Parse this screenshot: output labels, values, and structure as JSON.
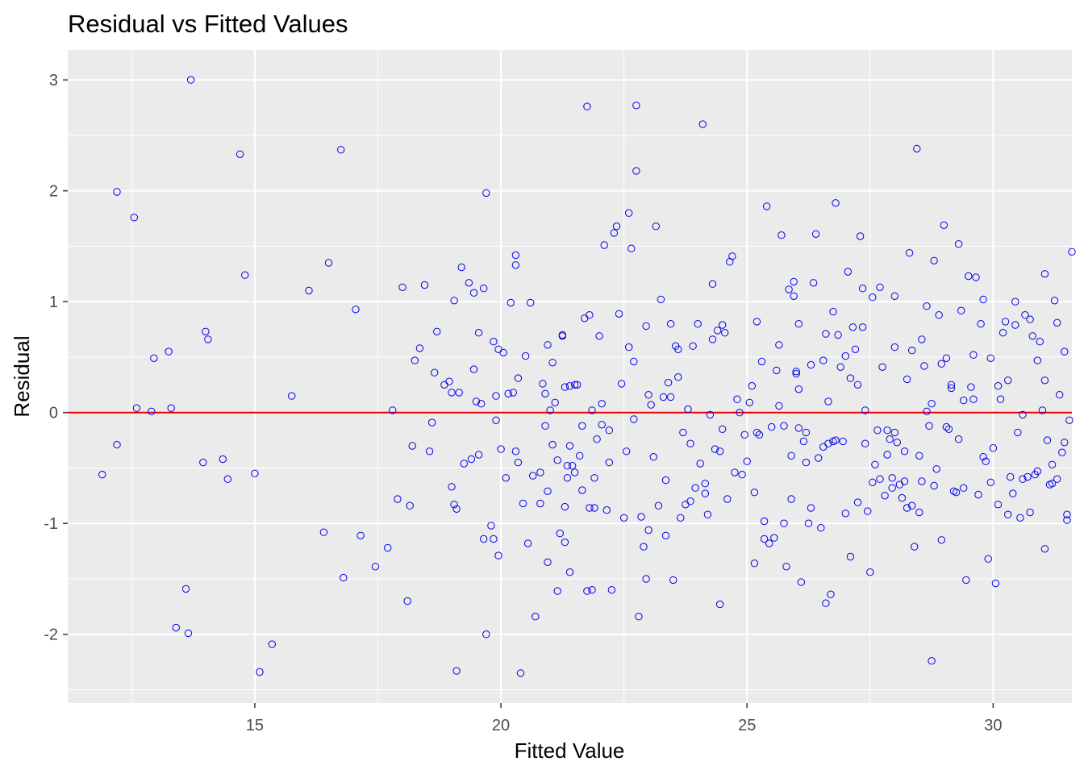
{
  "chart_data": {
    "type": "scatter",
    "title": "Residual vs Fitted Values",
    "xlabel": "Fitted Value",
    "ylabel": "Residual",
    "xlim": [
      11.2,
      31.6
    ],
    "ylim": [
      -2.62,
      3.27
    ],
    "xticks": [
      15,
      20,
      25,
      30
    ],
    "yticks": [
      -2,
      -1,
      0,
      1,
      2,
      3
    ],
    "grid": true,
    "reference_line": {
      "y": 0,
      "color": "#ee0000"
    },
    "panel_background": "#ebebeb",
    "point_color": "#0000ee",
    "points": [
      [
        11.9,
        -0.56
      ],
      [
        12.2,
        -0.29
      ],
      [
        12.2,
        1.99
      ],
      [
        12.55,
        1.76
      ],
      [
        12.6,
        0.04
      ],
      [
        12.9,
        0.01
      ],
      [
        12.95,
        0.49
      ],
      [
        13.25,
        0.55
      ],
      [
        13.3,
        0.04
      ],
      [
        13.4,
        -1.94
      ],
      [
        13.6,
        -1.59
      ],
      [
        13.65,
        -1.99
      ],
      [
        13.7,
        3.0
      ],
      [
        13.95,
        -0.45
      ],
      [
        14.0,
        0.73
      ],
      [
        14.05,
        0.66
      ],
      [
        14.35,
        -0.42
      ],
      [
        14.45,
        -0.6
      ],
      [
        14.7,
        2.33
      ],
      [
        14.8,
        1.24
      ],
      [
        15.0,
        -0.55
      ],
      [
        15.1,
        -2.34
      ],
      [
        15.35,
        -2.09
      ],
      [
        15.75,
        0.15
      ],
      [
        16.1,
        1.1
      ],
      [
        16.4,
        -1.08
      ],
      [
        16.5,
        1.35
      ],
      [
        16.75,
        2.37
      ],
      [
        16.8,
        -1.49
      ],
      [
        17.05,
        0.93
      ],
      [
        17.15,
        -1.11
      ],
      [
        17.45,
        -1.39
      ],
      [
        17.7,
        -1.22
      ],
      [
        17.8,
        0.02
      ],
      [
        17.9,
        -0.78
      ],
      [
        18.0,
        1.13
      ],
      [
        18.1,
        -1.7
      ],
      [
        18.15,
        -0.84
      ],
      [
        18.2,
        -0.3
      ],
      [
        18.25,
        0.47
      ],
      [
        18.35,
        0.58
      ],
      [
        18.45,
        1.15
      ],
      [
        18.55,
        -0.35
      ],
      [
        18.6,
        -0.09
      ],
      [
        18.65,
        0.36
      ],
      [
        18.7,
        0.73
      ],
      [
        18.85,
        0.25
      ],
      [
        18.95,
        0.28
      ],
      [
        19.0,
        0.18
      ],
      [
        19.0,
        -0.67
      ],
      [
        19.05,
        1.01
      ],
      [
        19.05,
        -0.83
      ],
      [
        19.1,
        -0.87
      ],
      [
        19.1,
        -2.33
      ],
      [
        19.15,
        0.18
      ],
      [
        19.2,
        1.31
      ],
      [
        19.25,
        -0.46
      ],
      [
        19.35,
        1.17
      ],
      [
        19.4,
        -0.42
      ],
      [
        19.45,
        1.08
      ],
      [
        19.45,
        0.39
      ],
      [
        19.5,
        0.1
      ],
      [
        19.55,
        -0.38
      ],
      [
        19.55,
        0.72
      ],
      [
        19.6,
        0.08
      ],
      [
        19.65,
        -1.14
      ],
      [
        19.65,
        1.12
      ],
      [
        19.7,
        1.98
      ],
      [
        19.7,
        -2.0
      ],
      [
        19.8,
        -1.02
      ],
      [
        19.85,
        -1.14
      ],
      [
        19.85,
        0.64
      ],
      [
        19.9,
        0.15
      ],
      [
        19.9,
        -0.07
      ],
      [
        19.95,
        -1.29
      ],
      [
        19.95,
        0.57
      ],
      [
        20.0,
        -0.33
      ],
      [
        20.05,
        0.54
      ],
      [
        20.1,
        -0.59
      ],
      [
        20.15,
        0.17
      ],
      [
        20.2,
        0.99
      ],
      [
        20.25,
        0.18
      ],
      [
        20.3,
        1.42
      ],
      [
        20.3,
        1.33
      ],
      [
        20.3,
        -0.35
      ],
      [
        20.35,
        0.31
      ],
      [
        20.35,
        -0.45
      ],
      [
        20.4,
        -2.35
      ],
      [
        20.45,
        -0.82
      ],
      [
        20.5,
        0.51
      ],
      [
        20.55,
        -1.18
      ],
      [
        20.6,
        0.99
      ],
      [
        20.65,
        -0.57
      ],
      [
        20.7,
        -1.84
      ],
      [
        20.8,
        -0.82
      ],
      [
        20.8,
        -0.54
      ],
      [
        20.85,
        0.26
      ],
      [
        20.9,
        0.17
      ],
      [
        20.9,
        -0.12
      ],
      [
        20.95,
        -1.35
      ],
      [
        20.95,
        -0.71
      ],
      [
        20.95,
        0.61
      ],
      [
        21.0,
        0.02
      ],
      [
        21.05,
        -0.29
      ],
      [
        21.05,
        0.45
      ],
      [
        21.1,
        0.09
      ],
      [
        21.15,
        -1.61
      ],
      [
        21.15,
        -0.43
      ],
      [
        21.2,
        -1.09
      ],
      [
        21.25,
        0.69
      ],
      [
        21.25,
        0.7
      ],
      [
        21.3,
        0.23
      ],
      [
        21.3,
        -0.85
      ],
      [
        21.35,
        -0.48
      ],
      [
        21.35,
        -0.59
      ],
      [
        21.4,
        -1.44
      ],
      [
        21.4,
        -0.3
      ],
      [
        21.4,
        0.24
      ],
      [
        21.45,
        -0.48
      ],
      [
        21.5,
        -0.54
      ],
      [
        21.5,
        0.25
      ],
      [
        21.55,
        0.25
      ],
      [
        21.6,
        -0.39
      ],
      [
        21.65,
        -0.12
      ],
      [
        21.65,
        -0.7
      ],
      [
        21.7,
        0.85
      ],
      [
        21.75,
        -1.61
      ],
      [
        21.75,
        2.76
      ],
      [
        21.8,
        -0.86
      ],
      [
        21.85,
        -1.6
      ],
      [
        21.85,
        0.02
      ],
      [
        21.9,
        -0.59
      ],
      [
        21.9,
        -0.86
      ],
      [
        21.95,
        -0.24
      ],
      [
        22.0,
        0.69
      ],
      [
        22.05,
        0.08
      ],
      [
        22.05,
        -0.11
      ],
      [
        22.1,
        1.51
      ],
      [
        22.15,
        -0.88
      ],
      [
        22.2,
        -0.16
      ],
      [
        22.25,
        -1.6
      ],
      [
        22.3,
        1.62
      ],
      [
        22.35,
        1.68
      ],
      [
        22.4,
        0.89
      ],
      [
        22.45,
        0.26
      ],
      [
        22.5,
        -0.95
      ],
      [
        22.55,
        -0.35
      ],
      [
        22.6,
        1.8
      ],
      [
        22.6,
        0.59
      ],
      [
        22.65,
        1.48
      ],
      [
        22.7,
        -0.06
      ],
      [
        22.75,
        2.77
      ],
      [
        22.75,
        2.18
      ],
      [
        22.8,
        -1.84
      ],
      [
        22.85,
        -0.94
      ],
      [
        22.9,
        -1.21
      ],
      [
        22.95,
        -1.5
      ],
      [
        22.95,
        0.78
      ],
      [
        23.0,
        -1.06
      ],
      [
        23.05,
        0.07
      ],
      [
        23.1,
        -0.4
      ],
      [
        23.15,
        1.68
      ],
      [
        23.2,
        -0.84
      ],
      [
        23.25,
        1.02
      ],
      [
        23.3,
        0.14
      ],
      [
        23.35,
        -0.61
      ],
      [
        23.4,
        0.27
      ],
      [
        23.45,
        0.8
      ],
      [
        23.45,
        0.14
      ],
      [
        23.5,
        -1.51
      ],
      [
        23.55,
        0.6
      ],
      [
        23.6,
        0.32
      ],
      [
        23.65,
        -0.95
      ],
      [
        23.7,
        -0.18
      ],
      [
        23.75,
        -0.83
      ],
      [
        23.8,
        0.03
      ],
      [
        23.85,
        -0.8
      ],
      [
        23.9,
        0.6
      ],
      [
        23.95,
        -0.68
      ],
      [
        24.0,
        0.8
      ],
      [
        24.05,
        -0.46
      ],
      [
        24.1,
        2.6
      ],
      [
        24.15,
        -0.73
      ],
      [
        24.2,
        -0.92
      ],
      [
        24.25,
        -0.02
      ],
      [
        24.3,
        1.16
      ],
      [
        24.3,
        0.66
      ],
      [
        24.35,
        -0.33
      ],
      [
        24.4,
        0.74
      ],
      [
        24.45,
        -0.35
      ],
      [
        24.5,
        -0.15
      ],
      [
        24.5,
        0.79
      ],
      [
        24.55,
        0.72
      ],
      [
        24.6,
        -0.78
      ],
      [
        24.65,
        1.36
      ],
      [
        24.7,
        1.41
      ],
      [
        24.75,
        -0.54
      ],
      [
        24.8,
        0.12
      ],
      [
        24.85,
        0.0
      ],
      [
        24.9,
        -0.56
      ],
      [
        24.95,
        -0.2
      ],
      [
        25.0,
        -0.44
      ],
      [
        25.05,
        0.09
      ],
      [
        25.1,
        0.24
      ],
      [
        25.15,
        -1.36
      ],
      [
        25.15,
        -0.72
      ],
      [
        25.2,
        -0.18
      ],
      [
        25.25,
        -0.2
      ],
      [
        25.3,
        0.46
      ],
      [
        25.35,
        -1.14
      ],
      [
        25.35,
        -0.98
      ],
      [
        25.4,
        1.86
      ],
      [
        25.45,
        -1.18
      ],
      [
        25.5,
        -0.13
      ],
      [
        25.55,
        -1.13
      ],
      [
        25.6,
        0.38
      ],
      [
        25.65,
        0.61
      ],
      [
        25.7,
        1.6
      ],
      [
        25.75,
        -1.0
      ],
      [
        25.75,
        -0.12
      ],
      [
        25.8,
        -1.39
      ],
      [
        25.85,
        1.11
      ],
      [
        25.9,
        -0.39
      ],
      [
        25.95,
        1.18
      ],
      [
        25.95,
        1.05
      ],
      [
        26.0,
        0.35
      ],
      [
        26.0,
        0.37
      ],
      [
        26.05,
        -0.14
      ],
      [
        26.05,
        0.8
      ],
      [
        26.1,
        -1.53
      ],
      [
        26.15,
        -0.26
      ],
      [
        26.2,
        -0.18
      ],
      [
        26.25,
        -1.0
      ],
      [
        26.3,
        -0.86
      ],
      [
        26.35,
        1.17
      ],
      [
        26.4,
        1.61
      ],
      [
        26.45,
        -0.41
      ],
      [
        26.5,
        -1.04
      ],
      [
        26.55,
        0.47
      ],
      [
        26.6,
        0.71
      ],
      [
        26.65,
        -0.28
      ],
      [
        26.65,
        0.1
      ],
      [
        26.7,
        -1.64
      ],
      [
        26.75,
        0.91
      ],
      [
        26.8,
        -0.25
      ],
      [
        26.85,
        0.7
      ],
      [
        26.9,
        0.41
      ],
      [
        26.95,
        -0.26
      ],
      [
        27.0,
        -0.91
      ],
      [
        27.05,
        1.27
      ],
      [
        27.1,
        0.31
      ],
      [
        27.15,
        0.77
      ],
      [
        27.2,
        0.57
      ],
      [
        27.25,
        -0.81
      ],
      [
        27.3,
        1.59
      ],
      [
        27.35,
        0.77
      ],
      [
        27.4,
        -0.28
      ],
      [
        27.45,
        -0.89
      ],
      [
        27.5,
        -1.44
      ],
      [
        27.55,
        1.04
      ],
      [
        27.6,
        -0.47
      ],
      [
        27.65,
        -0.16
      ],
      [
        27.7,
        -0.6
      ],
      [
        27.75,
        0.41
      ],
      [
        27.8,
        -0.75
      ],
      [
        27.85,
        -0.16
      ],
      [
        27.9,
        -0.24
      ],
      [
        27.95,
        -0.59
      ],
      [
        28.0,
        1.05
      ],
      [
        28.0,
        -0.18
      ],
      [
        28.05,
        -0.27
      ],
      [
        28.1,
        -0.65
      ],
      [
        28.15,
        -0.77
      ],
      [
        28.2,
        -0.62
      ],
      [
        28.25,
        -0.86
      ],
      [
        28.25,
        0.3
      ],
      [
        28.3,
        1.44
      ],
      [
        28.35,
        0.56
      ],
      [
        28.4,
        -1.21
      ],
      [
        28.45,
        2.38
      ],
      [
        28.5,
        -0.39
      ],
      [
        28.5,
        -0.9
      ],
      [
        28.55,
        0.66
      ],
      [
        28.6,
        0.42
      ],
      [
        28.65,
        0.96
      ],
      [
        28.7,
        -0.12
      ],
      [
        28.75,
        0.08
      ],
      [
        28.75,
        -2.24
      ],
      [
        28.8,
        -0.66
      ],
      [
        28.85,
        -0.51
      ],
      [
        28.9,
        0.88
      ],
      [
        28.95,
        -1.15
      ],
      [
        29.0,
        1.69
      ],
      [
        29.05,
        0.49
      ],
      [
        29.1,
        -0.15
      ],
      [
        29.15,
        0.25
      ],
      [
        29.2,
        -0.71
      ],
      [
        29.25,
        -0.72
      ],
      [
        29.3,
        1.52
      ],
      [
        29.35,
        0.92
      ],
      [
        29.4,
        -0.68
      ],
      [
        29.45,
        -1.51
      ],
      [
        29.5,
        1.23
      ],
      [
        29.55,
        0.23
      ],
      [
        29.6,
        0.12
      ],
      [
        29.65,
        1.22
      ],
      [
        29.7,
        -0.74
      ],
      [
        29.75,
        0.8
      ],
      [
        29.8,
        1.02
      ],
      [
        29.85,
        -0.44
      ],
      [
        29.9,
        -1.32
      ],
      [
        29.95,
        0.49
      ],
      [
        30.0,
        -0.32
      ],
      [
        30.05,
        -1.54
      ],
      [
        30.1,
        0.24
      ],
      [
        30.15,
        0.12
      ],
      [
        30.2,
        0.72
      ],
      [
        30.25,
        0.82
      ],
      [
        30.3,
        0.29
      ],
      [
        30.35,
        -0.58
      ],
      [
        30.4,
        -0.73
      ],
      [
        30.45,
        0.79
      ],
      [
        30.5,
        -0.18
      ],
      [
        30.55,
        -0.95
      ],
      [
        30.6,
        -0.6
      ],
      [
        30.65,
        0.88
      ],
      [
        30.7,
        -0.58
      ],
      [
        30.75,
        -0.9
      ],
      [
        30.8,
        0.69
      ],
      [
        30.85,
        -0.56
      ],
      [
        30.9,
        -0.53
      ],
      [
        30.95,
        0.64
      ],
      [
        31.0,
        0.02
      ],
      [
        31.05,
        1.25
      ],
      [
        31.05,
        0.29
      ],
      [
        31.1,
        -0.25
      ],
      [
        31.15,
        -0.65
      ],
      [
        31.2,
        -0.64
      ],
      [
        31.25,
        1.01
      ],
      [
        31.3,
        -0.6
      ],
      [
        31.35,
        0.16
      ],
      [
        31.4,
        -0.36
      ],
      [
        31.45,
        0.55
      ],
      [
        31.5,
        -0.97
      ],
      [
        31.55,
        -0.07
      ],
      [
        31.6,
        1.45
      ],
      [
        25.2,
        0.82
      ],
      [
        25.65,
        0.06
      ],
      [
        25.9,
        -0.78
      ],
      [
        26.05,
        0.21
      ],
      [
        26.2,
        -0.45
      ],
      [
        26.3,
        0.43
      ],
      [
        26.55,
        -0.31
      ],
      [
        26.6,
        -1.72
      ],
      [
        26.75,
        -0.26
      ],
      [
        26.8,
        1.89
      ],
      [
        27.0,
        0.51
      ],
      [
        27.1,
        -1.3
      ],
      [
        27.25,
        0.25
      ],
      [
        27.35,
        1.12
      ],
      [
        27.4,
        0.02
      ],
      [
        27.55,
        -0.63
      ],
      [
        27.7,
        1.13
      ],
      [
        27.85,
        -0.38
      ],
      [
        27.95,
        -0.68
      ],
      [
        28.0,
        0.59
      ],
      [
        28.2,
        -0.35
      ],
      [
        28.35,
        -0.84
      ],
      [
        28.55,
        -0.62
      ],
      [
        28.65,
        0.01
      ],
      [
        28.8,
        1.37
      ],
      [
        28.95,
        0.44
      ],
      [
        29.05,
        -0.13
      ],
      [
        29.15,
        0.22
      ],
      [
        29.3,
        -0.24
      ],
      [
        29.4,
        0.11
      ],
      [
        29.6,
        0.52
      ],
      [
        29.8,
        -0.4
      ],
      [
        29.95,
        -0.63
      ],
      [
        30.1,
        -0.83
      ],
      [
        30.3,
        -0.92
      ],
      [
        30.45,
        1.0
      ],
      [
        30.6,
        -0.02
      ],
      [
        30.75,
        0.84
      ],
      [
        30.9,
        0.47
      ],
      [
        31.05,
        -1.23
      ],
      [
        31.2,
        -0.47
      ],
      [
        31.3,
        0.81
      ],
      [
        31.45,
        -0.27
      ],
      [
        31.5,
        -0.92
      ],
      [
        21.3,
        -1.17
      ],
      [
        21.8,
        0.88
      ],
      [
        22.2,
        -0.45
      ],
      [
        22.7,
        0.46
      ],
      [
        23.0,
        0.16
      ],
      [
        23.35,
        -1.11
      ],
      [
        23.6,
        0.57
      ],
      [
        23.85,
        -0.28
      ],
      [
        24.15,
        -0.64
      ],
      [
        24.45,
        -1.73
      ]
    ]
  }
}
